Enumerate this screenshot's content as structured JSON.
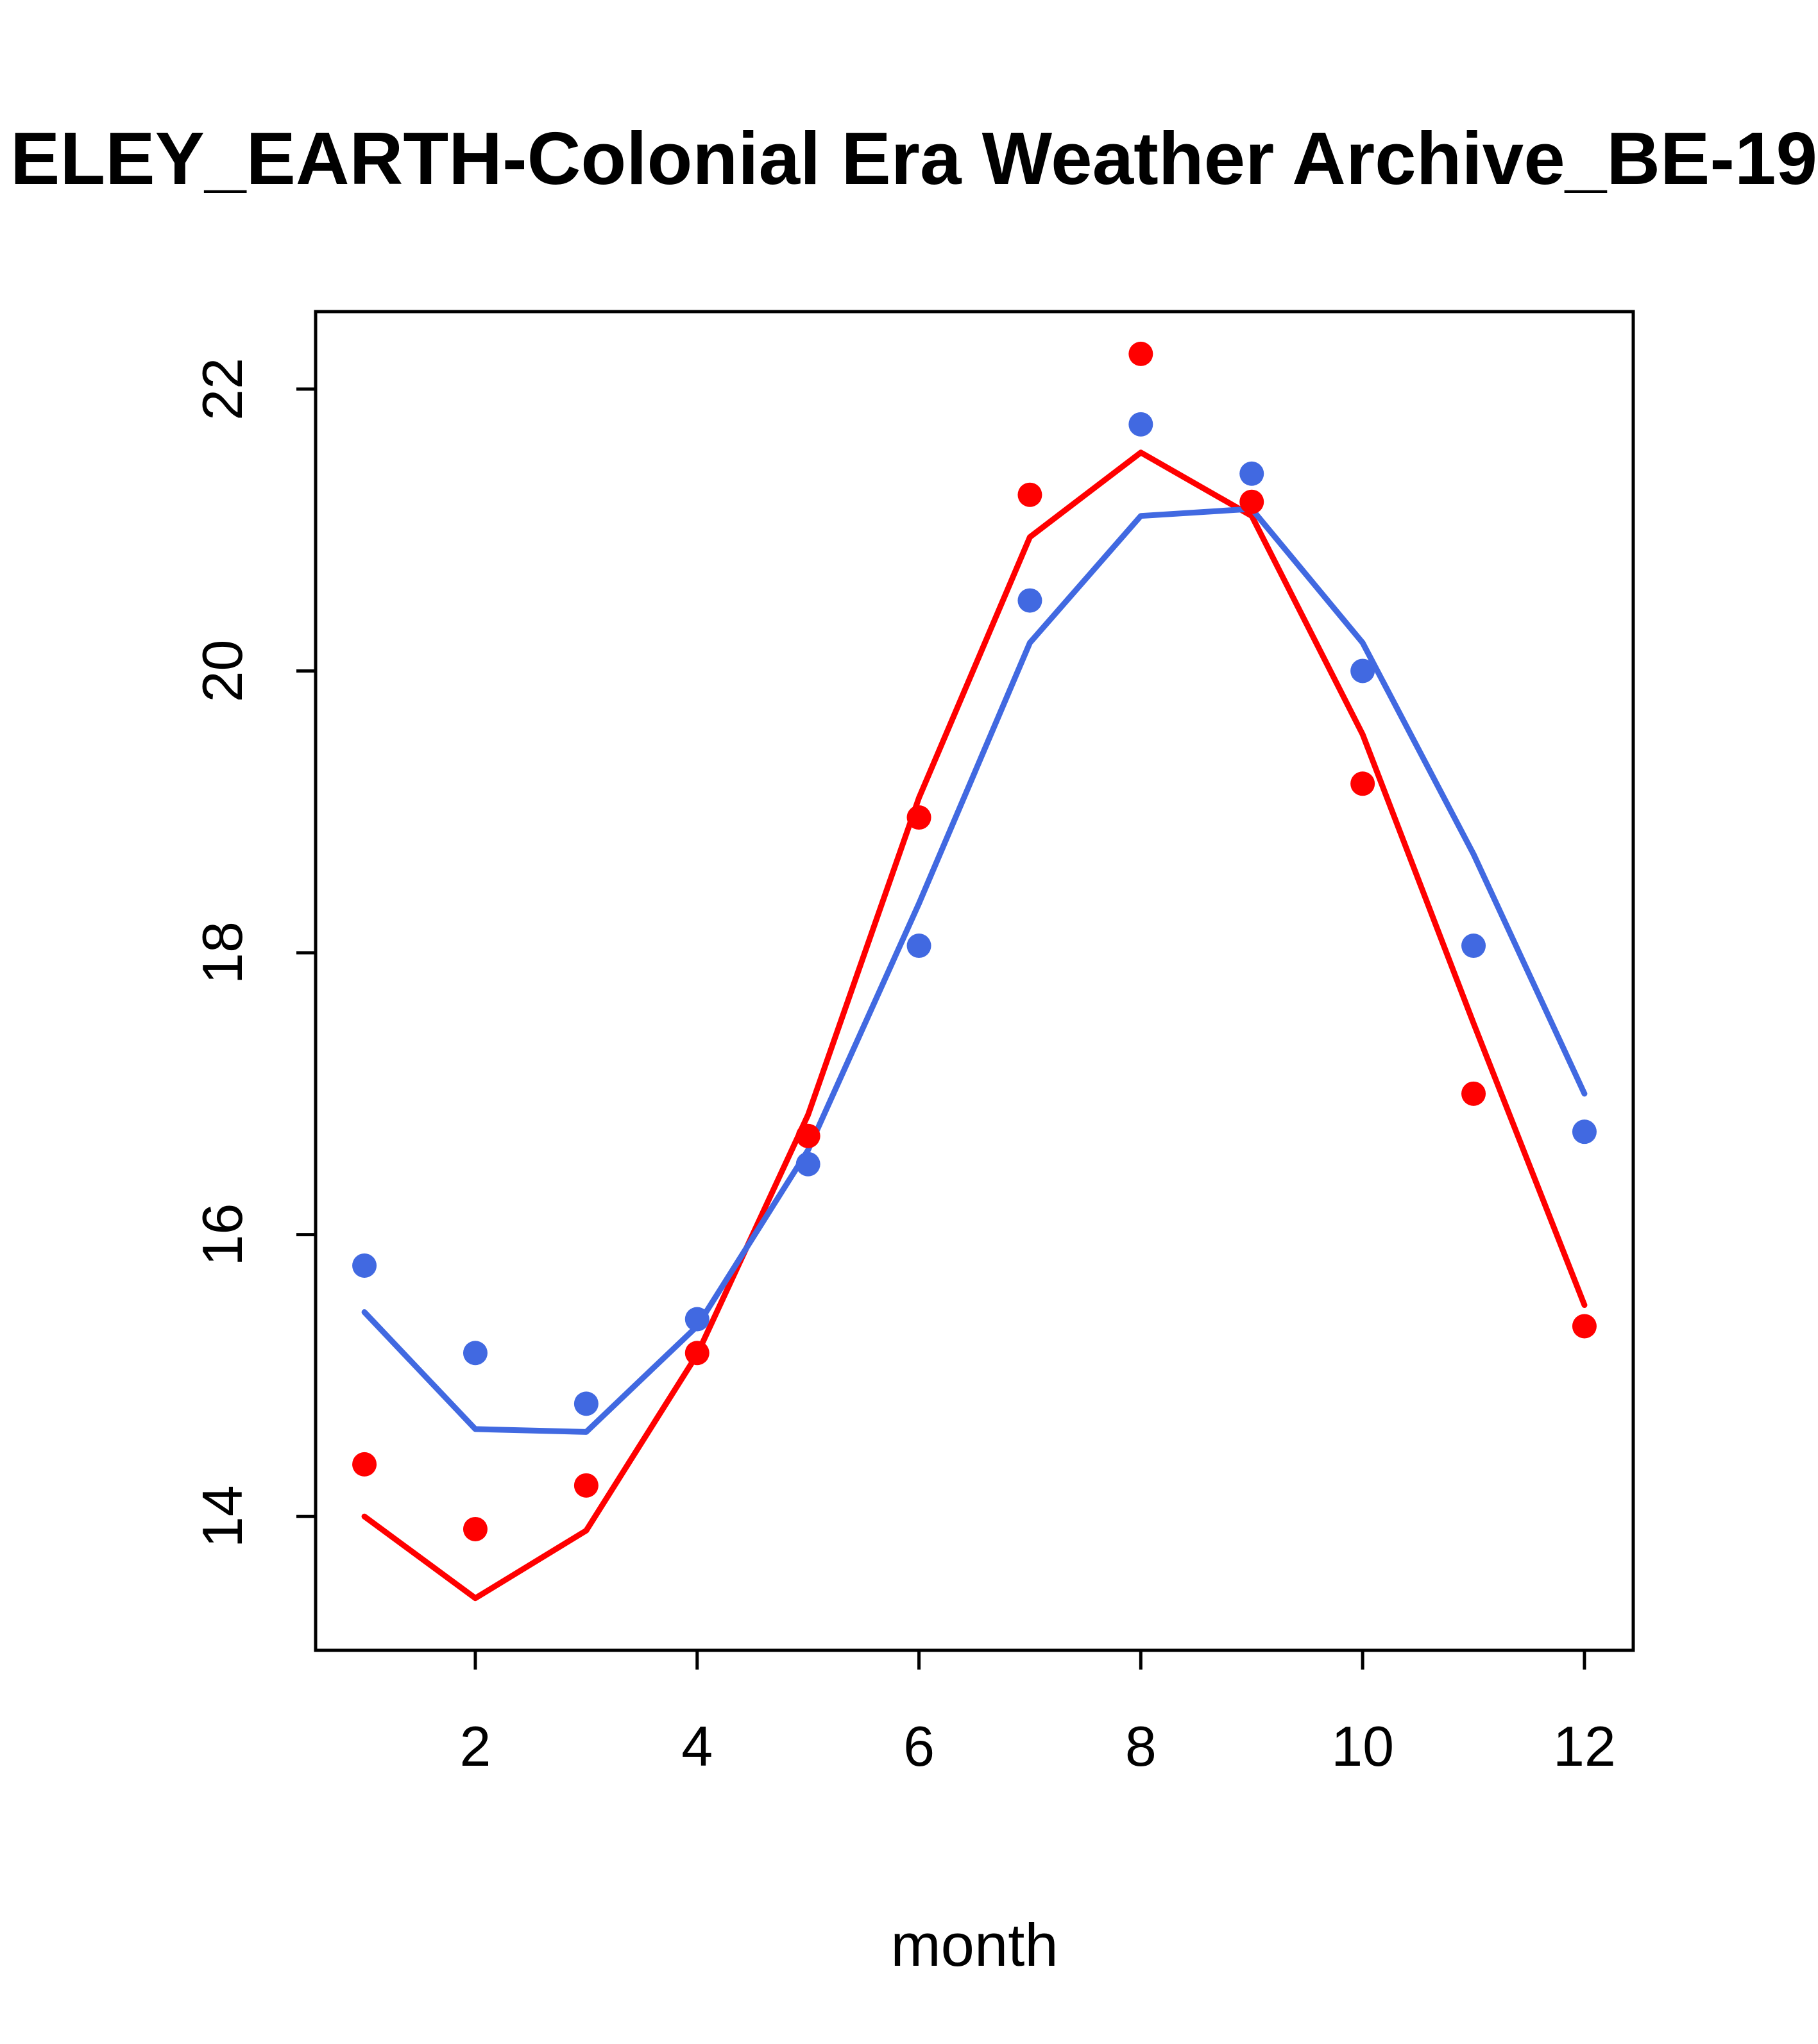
{
  "chart_data": {
    "type": "scatter+line",
    "title": "ELEY_EARTH-Colonial Era Weather Archive_BE-19",
    "xlabel": "month",
    "ylabel": "",
    "xlim": [
      0.56,
      12.44
    ],
    "ylim": [
      13.05,
      22.55
    ],
    "xticks": [
      2,
      4,
      6,
      8,
      10,
      12
    ],
    "yticks": [
      14,
      16,
      18,
      20,
      22
    ],
    "grid": false,
    "legend": "none",
    "x": [
      1,
      2,
      3,
      4,
      5,
      6,
      7,
      8,
      9,
      10,
      11,
      12
    ],
    "colors": {
      "red": "#FF0000",
      "blue": "#4169E1",
      "axis": "#000000"
    },
    "series": [
      {
        "name": "red-trend-line",
        "type": "line",
        "color": "#FF0000",
        "values": [
          14.0,
          13.42,
          13.9,
          15.15,
          16.85,
          19.1,
          20.95,
          21.55,
          21.1,
          19.55,
          17.5,
          15.5
        ]
      },
      {
        "name": "blue-trend-line",
        "type": "line",
        "color": "#4169E1",
        "values": [
          15.45,
          14.62,
          14.6,
          15.35,
          16.6,
          18.35,
          20.2,
          21.1,
          21.15,
          20.2,
          18.7,
          17.0
        ]
      },
      {
        "name": "blue-monthly-points",
        "type": "points",
        "color": "#4169E1",
        "values": [
          15.78,
          15.16,
          14.8,
          15.4,
          16.5,
          18.05,
          20.5,
          21.75,
          21.4,
          20.0,
          18.05,
          16.73
        ]
      },
      {
        "name": "red-monthly-points",
        "type": "points",
        "color": "#FF0000",
        "values": [
          14.37,
          13.91,
          14.22,
          15.16,
          16.7,
          18.96,
          21.25,
          22.25,
          21.2,
          19.2,
          17.0,
          15.35
        ]
      }
    ],
    "plot_style": {
      "box": true,
      "tick_label_fontsize": 88,
      "axis_label_fontsize": 94,
      "title_fontsize": 116
    }
  }
}
